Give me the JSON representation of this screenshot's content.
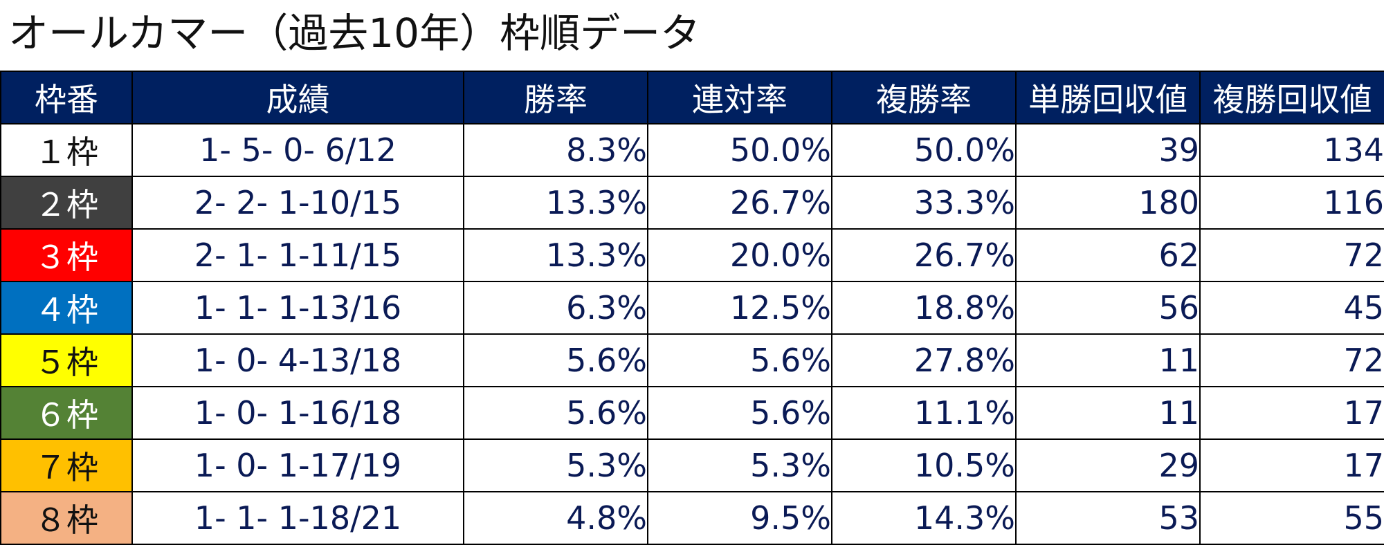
{
  "title": "オールカマー（過去10年）枠順データ",
  "headers": [
    "枠番",
    "成績",
    "勝率",
    "連対率",
    "複勝率",
    "単勝回収値",
    "複勝回収値"
  ],
  "rows": [
    {
      "waku": "１枠",
      "record": "1- 5- 0- 6/12",
      "win": "8.3%",
      "place2": "50.0%",
      "place3": "50.0%",
      "win_return": "39",
      "show_return": "134",
      "bg": "#ffffff",
      "fg": "#111111"
    },
    {
      "waku": "２枠",
      "record": "2- 2- 1-10/15",
      "win": "13.3%",
      "place2": "26.7%",
      "place3": "33.3%",
      "win_return": "180",
      "show_return": "116",
      "bg": "#404040",
      "fg": "#ffffff"
    },
    {
      "waku": "３枠",
      "record": "2- 1- 1-11/15",
      "win": "13.3%",
      "place2": "20.0%",
      "place3": "26.7%",
      "win_return": "62",
      "show_return": "72",
      "bg": "#ff0000",
      "fg": "#ffffff"
    },
    {
      "waku": "４枠",
      "record": "1- 1- 1-13/16",
      "win": "6.3%",
      "place2": "12.5%",
      "place3": "18.8%",
      "win_return": "56",
      "show_return": "45",
      "bg": "#0070c0",
      "fg": "#ffffff"
    },
    {
      "waku": "５枠",
      "record": "1- 0- 4-13/18",
      "win": "5.6%",
      "place2": "5.6%",
      "place3": "27.8%",
      "win_return": "11",
      "show_return": "72",
      "bg": "#ffff00",
      "fg": "#111111"
    },
    {
      "waku": "６枠",
      "record": "1- 0- 1-16/18",
      "win": "5.6%",
      "place2": "5.6%",
      "place3": "11.1%",
      "win_return": "11",
      "show_return": "17",
      "bg": "#548235",
      "fg": "#ffffff"
    },
    {
      "waku": "７枠",
      "record": "1- 0- 1-17/19",
      "win": "5.3%",
      "place2": "5.3%",
      "place3": "10.5%",
      "win_return": "29",
      "show_return": "17",
      "bg": "#ffc000",
      "fg": "#111111"
    },
    {
      "waku": "８枠",
      "record": "1- 1- 1-18/21",
      "win": "4.8%",
      "place2": "9.5%",
      "place3": "14.3%",
      "win_return": "53",
      "show_return": "55",
      "bg": "#f4b183",
      "fg": "#111111"
    }
  ],
  "colors": {
    "header_bg": "#002060",
    "header_fg": "#ffffff",
    "body_fg": "#0a1a55"
  }
}
